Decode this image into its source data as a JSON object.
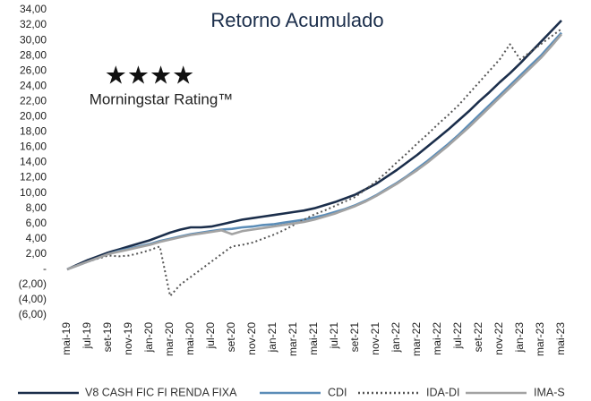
{
  "chart_data": {
    "type": "line",
    "title": "Retorno Acumulado",
    "annotations": [
      "★★★★",
      "Morningstar Rating™"
    ],
    "categories": [
      "mai-19",
      null,
      "jul-19",
      null,
      "set-19",
      null,
      "nov-19",
      null,
      "jan-20",
      null,
      "mar-20",
      null,
      "mai-20",
      null,
      "jul-20",
      null,
      "set-20",
      null,
      "nov-20",
      null,
      "jan-21",
      null,
      "mar-21",
      null,
      "mai-21",
      null,
      "jul-21",
      null,
      "set-21",
      null,
      "nov-21",
      null,
      "jan-22",
      null,
      "mar-22",
      null,
      "mai-22",
      null,
      "jul-22",
      null,
      "set-22",
      null,
      "nov-22",
      null,
      "jan-23",
      null,
      "mar-23",
      null,
      "mai-23"
    ],
    "series": [
      {
        "name": "V8 CASH FIC FI RENDA FIXA",
        "color": "#1b2e4b",
        "style": "solid",
        "values": [
          0,
          0.6,
          1.2,
          1.7,
          2.2,
          2.6,
          3.0,
          3.4,
          3.8,
          4.3,
          4.8,
          5.2,
          5.5,
          5.5,
          5.6,
          5.9,
          6.2,
          6.5,
          6.7,
          6.9,
          7.1,
          7.3,
          7.5,
          7.7,
          8.0,
          8.4,
          8.8,
          9.3,
          9.8,
          10.5,
          11.2,
          12.1,
          13.0,
          14.0,
          15.0,
          16.1,
          17.2,
          18.3,
          19.5,
          20.7,
          22.0,
          23.2,
          24.5,
          25.7,
          27.0,
          28.4,
          29.8,
          31.2,
          32.6
        ]
      },
      {
        "name": "CDI",
        "color": "#5b8db8",
        "style": "solid",
        "values": [
          0,
          0.5,
          1.0,
          1.5,
          2.0,
          2.4,
          2.7,
          3.0,
          3.3,
          3.7,
          4.0,
          4.3,
          4.6,
          4.8,
          5.0,
          5.2,
          5.3,
          5.5,
          5.6,
          5.8,
          5.9,
          6.1,
          6.3,
          6.5,
          6.8,
          7.1,
          7.5,
          7.9,
          8.4,
          9.0,
          9.7,
          10.5,
          11.3,
          12.2,
          13.2,
          14.2,
          15.3,
          16.4,
          17.6,
          18.9,
          20.2,
          21.5,
          22.8,
          24.1,
          25.4,
          26.7,
          28.0,
          29.5,
          31.0
        ]
      },
      {
        "name": "IDA-DI",
        "color": "#555555",
        "style": "dotted",
        "values": [
          0,
          0.5,
          1.0,
          1.4,
          1.8,
          1.7,
          1.8,
          2.1,
          2.5,
          3.0,
          -3.5,
          -2.0,
          -1.0,
          0.0,
          1.0,
          2.0,
          3.0,
          3.2,
          3.5,
          4.0,
          4.5,
          5.1,
          5.8,
          6.5,
          7.2,
          7.7,
          8.3,
          8.9,
          9.5,
          10.5,
          11.5,
          12.7,
          14.0,
          15.2,
          16.5,
          17.7,
          19.0,
          20.2,
          21.5,
          23.0,
          24.5,
          26.0,
          27.5,
          29.5,
          27.5,
          28.5,
          29.5,
          30.5,
          31.5
        ]
      },
      {
        "name": "IMA-S",
        "color": "#a3a3a3",
        "style": "solid",
        "values": [
          0,
          0.5,
          1.0,
          1.5,
          2.0,
          2.3,
          2.6,
          2.9,
          3.2,
          3.6,
          3.9,
          4.2,
          4.5,
          4.7,
          4.9,
          5.1,
          4.6,
          5.0,
          5.2,
          5.4,
          5.6,
          5.8,
          6.0,
          6.2,
          6.5,
          6.9,
          7.3,
          7.8,
          8.3,
          8.9,
          9.6,
          10.4,
          11.2,
          12.1,
          13.0,
          14.0,
          15.1,
          16.2,
          17.4,
          18.6,
          19.9,
          21.2,
          22.5,
          23.8,
          25.1,
          26.4,
          27.7,
          29.2,
          30.8
        ]
      }
    ],
    "ylim": [
      -6,
      34
    ],
    "yticks": [
      {
        "value": 34,
        "label": "34,00"
      },
      {
        "value": 32,
        "label": "32,00"
      },
      {
        "value": 30,
        "label": "30,00"
      },
      {
        "value": 28,
        "label": "28,00"
      },
      {
        "value": 26,
        "label": "26,00"
      },
      {
        "value": 24,
        "label": "24,00"
      },
      {
        "value": 22,
        "label": "22,00"
      },
      {
        "value": 20,
        "label": "20,00"
      },
      {
        "value": 18,
        "label": "18,00"
      },
      {
        "value": 16,
        "label": "16,00"
      },
      {
        "value": 14,
        "label": "14,00"
      },
      {
        "value": 12,
        "label": "12,00"
      },
      {
        "value": 10,
        "label": "10,00"
      },
      {
        "value": 8,
        "label": "8,00"
      },
      {
        "value": 6,
        "label": "6,00"
      },
      {
        "value": 4,
        "label": "4,00"
      },
      {
        "value": 2,
        "label": "2,00"
      },
      {
        "value": 0,
        "label": "-"
      },
      {
        "value": -2,
        "label": "(2,00)"
      },
      {
        "value": -4,
        "label": "(4,00)"
      },
      {
        "value": -6,
        "label": "(6,00)"
      }
    ],
    "grid": false,
    "legend": "bottom"
  }
}
